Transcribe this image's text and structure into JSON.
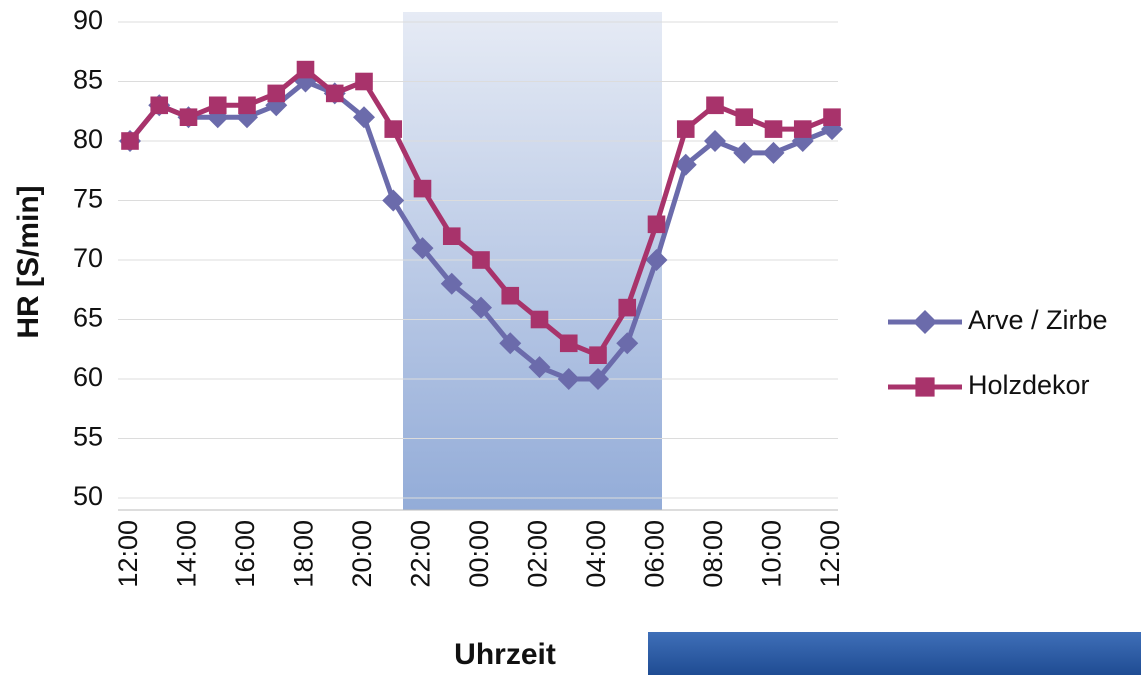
{
  "chart_data": {
    "type": "line",
    "x_label": "Uhrzeit",
    "y_label": "HR [S/min]",
    "categories": [
      "12:00",
      null,
      "14:00",
      null,
      "16:00",
      null,
      "18:00",
      null,
      "20:00",
      null,
      "22:00",
      null,
      "00:00",
      null,
      "02:00",
      null,
      "04:00",
      null,
      "06:00",
      null,
      "08:00",
      null,
      "10:00",
      null,
      "12:00"
    ],
    "series": [
      {
        "name": "Arve / Zirbe",
        "color": "#6b6bab",
        "marker": "diamond",
        "values": [
          80,
          83,
          82,
          82,
          82,
          83,
          85,
          84,
          82,
          75,
          71,
          68,
          66,
          63,
          61,
          60,
          60,
          63,
          70,
          78,
          80,
          79,
          79,
          80,
          81
        ]
      },
      {
        "name": "Holzdekor",
        "color": "#a8336b",
        "marker": "square",
        "values": [
          80,
          83,
          82,
          83,
          83,
          84,
          86,
          84,
          85,
          81,
          76,
          72,
          70,
          67,
          65,
          63,
          62,
          66,
          73,
          81,
          83,
          82,
          81,
          81,
          82
        ]
      }
    ],
    "ylim": [
      50,
      90
    ],
    "yticks": [
      50,
      55,
      60,
      65,
      70,
      75,
      80,
      85,
      90
    ],
    "grid": true,
    "legend": "right"
  }
}
